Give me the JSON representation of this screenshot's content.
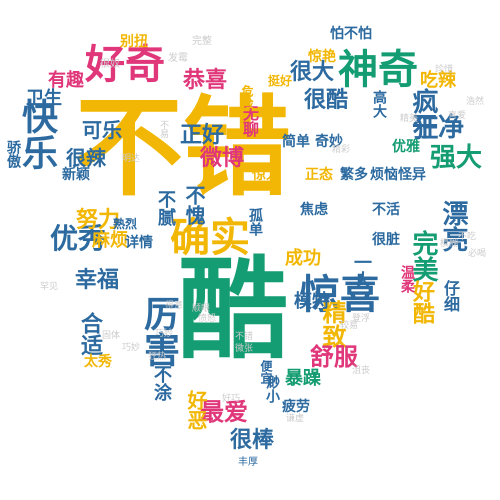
{
  "palette": {
    "gold": "#f2b705",
    "green": "#149c72",
    "blue": "#2c6aa0",
    "pink": "#e0367a",
    "gray": "#cccccc"
  },
  "words": [
    {
      "text": "不错",
      "color": "gold"
    },
    {
      "text": "酷",
      "color": "green"
    },
    {
      "text": "确实",
      "color": "gold"
    },
    {
      "text": "好奇",
      "color": "pink"
    },
    {
      "text": "神奇",
      "color": "green"
    },
    {
      "text": "快乐",
      "color": "blue"
    },
    {
      "text": "厉害",
      "color": "blue"
    },
    {
      "text": "惊喜",
      "color": "blue"
    },
    {
      "text": "优秀",
      "color": "blue"
    },
    {
      "text": "恭喜",
      "color": "pink"
    },
    {
      "text": "精致",
      "color": "gold"
    },
    {
      "text": "很大",
      "color": "blue"
    },
    {
      "text": "疯狂",
      "color": "blue"
    },
    {
      "text": "正好",
      "color": "blue"
    },
    {
      "text": "微博",
      "color": "pink"
    },
    {
      "text": "幸福",
      "color": "blue"
    },
    {
      "text": "最爱",
      "color": "pink"
    },
    {
      "text": "完美",
      "color": "green"
    },
    {
      "text": "漂亮",
      "color": "blue"
    },
    {
      "text": "强大",
      "color": "green"
    },
    {
      "text": "干净",
      "color": "blue"
    },
    {
      "text": "舒服",
      "color": "pink"
    },
    {
      "text": "很酷",
      "color": "blue"
    },
    {
      "text": "合适",
      "color": "blue"
    },
    {
      "text": "可乐",
      "color": "blue"
    },
    {
      "text": "很辣",
      "color": "blue"
    },
    {
      "text": "很棒",
      "color": "blue"
    },
    {
      "text": "有趣",
      "color": "pink"
    },
    {
      "text": "卫生",
      "color": "blue"
    },
    {
      "text": "吃辣",
      "color": "gold"
    },
    {
      "text": "努力",
      "color": "gold"
    },
    {
      "text": "麻烦",
      "color": "gold"
    },
    {
      "text": "不腻",
      "color": "blue"
    },
    {
      "text": "不愧",
      "color": "blue"
    },
    {
      "text": "成功",
      "color": "gold"
    },
    {
      "text": "模特",
      "color": "blue"
    },
    {
      "text": "一大",
      "color": "blue"
    },
    {
      "text": "暴躁",
      "color": "green"
    },
    {
      "text": "疲劳",
      "color": "blue"
    },
    {
      "text": "繁多",
      "color": "blue"
    },
    {
      "text": "好酷",
      "color": "gold"
    },
    {
      "text": "优雅",
      "color": "green"
    },
    {
      "text": "仔细",
      "color": "blue"
    },
    {
      "text": "太秀",
      "color": "gold"
    },
    {
      "text": "好恶",
      "color": "gold"
    },
    {
      "text": "不涂",
      "color": "blue"
    },
    {
      "text": "无聊",
      "color": "pink"
    },
    {
      "text": "高大",
      "color": "blue"
    },
    {
      "text": "奇妙",
      "color": "blue"
    },
    {
      "text": "简单",
      "color": "blue"
    },
    {
      "text": "惊艳",
      "color": "gold"
    },
    {
      "text": "挺好",
      "color": "gold"
    },
    {
      "text": "危险",
      "color": "gold"
    },
    {
      "text": "惊人",
      "color": "gold"
    },
    {
      "text": "烦恼",
      "color": "blue"
    },
    {
      "text": "怪异",
      "color": "blue"
    },
    {
      "text": "焦虑",
      "color": "blue"
    },
    {
      "text": "不活",
      "color": "blue"
    },
    {
      "text": "很脏",
      "color": "blue"
    },
    {
      "text": "正态",
      "color": "gold"
    },
    {
      "text": "孤单",
      "color": "blue"
    },
    {
      "text": "详情",
      "color": "blue"
    },
    {
      "text": "熟烈",
      "color": "blue"
    },
    {
      "text": "新颖",
      "color": "blue"
    },
    {
      "text": "别扭",
      "color": "gold"
    },
    {
      "text": "怕不怕",
      "color": "blue"
    },
    {
      "text": "骄傲",
      "color": "blue"
    },
    {
      "text": "温柔",
      "color": "pink"
    },
    {
      "text": "便宜",
      "color": "blue"
    },
    {
      "text": "渺小",
      "color": "blue"
    },
    {
      "text": "丰厚",
      "color": "blue"
    },
    {
      "text": "发霉",
      "color": "gray"
    },
    {
      "text": "完整",
      "color": "gray"
    },
    {
      "text": "很奴",
      "color": "gray"
    },
    {
      "text": "珍惜",
      "color": "gray"
    },
    {
      "text": "浩然",
      "color": "gray"
    },
    {
      "text": "喜爱",
      "color": "gray"
    },
    {
      "text": "明达",
      "color": "gray"
    },
    {
      "text": "不易",
      "color": "gray"
    },
    {
      "text": "固体",
      "color": "gray"
    },
    {
      "text": "精美",
      "color": "gray"
    },
    {
      "text": "模糊",
      "color": "gray"
    },
    {
      "text": "必喝",
      "color": "gray"
    },
    {
      "text": "登浮",
      "color": "gray"
    },
    {
      "text": "较易",
      "color": "gray"
    },
    {
      "text": "狂热",
      "color": "gray"
    },
    {
      "text": "巧妙",
      "color": "gray"
    },
    {
      "text": "微张",
      "color": "gray"
    },
    {
      "text": "谦虚",
      "color": "gray"
    },
    {
      "text": "沮丧",
      "color": "gray"
    },
    {
      "text": "好巧",
      "color": "gray"
    },
    {
      "text": "得意",
      "color": "gray"
    },
    {
      "text": "愤怒",
      "color": "gray"
    },
    {
      "text": "顺眼",
      "color": "gray"
    },
    {
      "text": "罕见",
      "color": "gray"
    },
    {
      "text": "不吃",
      "color": "gray"
    },
    {
      "text": "精彩",
      "color": "gray"
    },
    {
      "text": "巧妙",
      "color": "gray"
    },
    {
      "text": "不错",
      "color": "gray"
    }
  ]
}
